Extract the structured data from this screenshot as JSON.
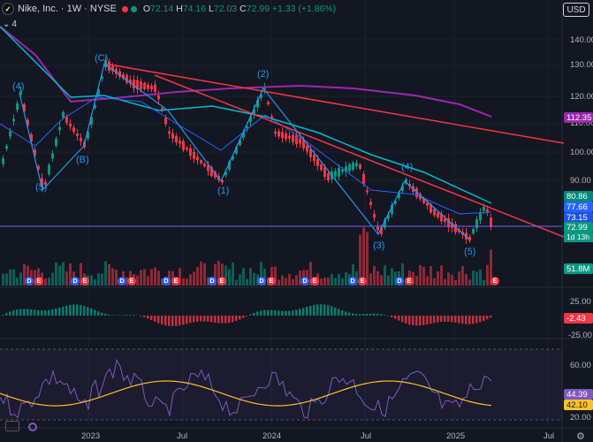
{
  "header": {
    "title": "Nike, Inc. · 1W · NYSE",
    "logo": "nike-swoosh-icon",
    "open_label": "O",
    "open": "72.14",
    "high_label": "H",
    "high": "74.16",
    "low_label": "L",
    "low": "72.03",
    "close_label": "C",
    "close": "72.99",
    "change": "+1.33 (+1.86%)",
    "status_colors": [
      "#f23645",
      "#089981"
    ]
  },
  "indicators": {
    "count": "4"
  },
  "currency": "USD",
  "price_axis": {
    "ticks": [
      "140.00",
      "130.00",
      "120.00",
      "110.00",
      "100.00",
      "90.00",
      "80.00"
    ],
    "tags": {
      "ma_slow": "112.35",
      "ma_mid": "80.86",
      "ma_fast": "77.66",
      "ma_short": "73.15",
      "last": "72.99",
      "countdown": "1d 13h",
      "volume": "51.8M"
    }
  },
  "macd_axis": {
    "ticks": [
      "25.00",
      "-25.00"
    ],
    "value": "-2.43"
  },
  "rsi_axis": {
    "ticks": [
      "60.00",
      "20.00"
    ],
    "rsi": "44.39",
    "rsi_ma": "42.10"
  },
  "time_axis": {
    "labels": [
      "2023",
      "Jul",
      "2024",
      "Jul",
      "2025",
      "Jul"
    ]
  },
  "wave_labels": [
    "(4)",
    "(C)",
    "(2)",
    "(B)",
    "(5)",
    "(1)",
    "(4)",
    "(3)",
    "(5)"
  ],
  "earnings_markers": [
    "D",
    "E",
    "D",
    "E",
    "D",
    "E",
    "D",
    "E",
    "D",
    "E",
    "D",
    "E",
    "D",
    "E",
    "D",
    "E",
    "D",
    "E",
    "E"
  ],
  "colors": {
    "up": "#089981",
    "down": "#f23645",
    "ma_slow": "#9c27b0",
    "ma_mid": "#00bcd4",
    "ma_fast": "#2962ff",
    "trend": "#f23645",
    "wave": "#2196f3",
    "rsi": "#7e57c2",
    "rsi_ma": "#fbc02d",
    "hline": "#7b61ff"
  }
}
